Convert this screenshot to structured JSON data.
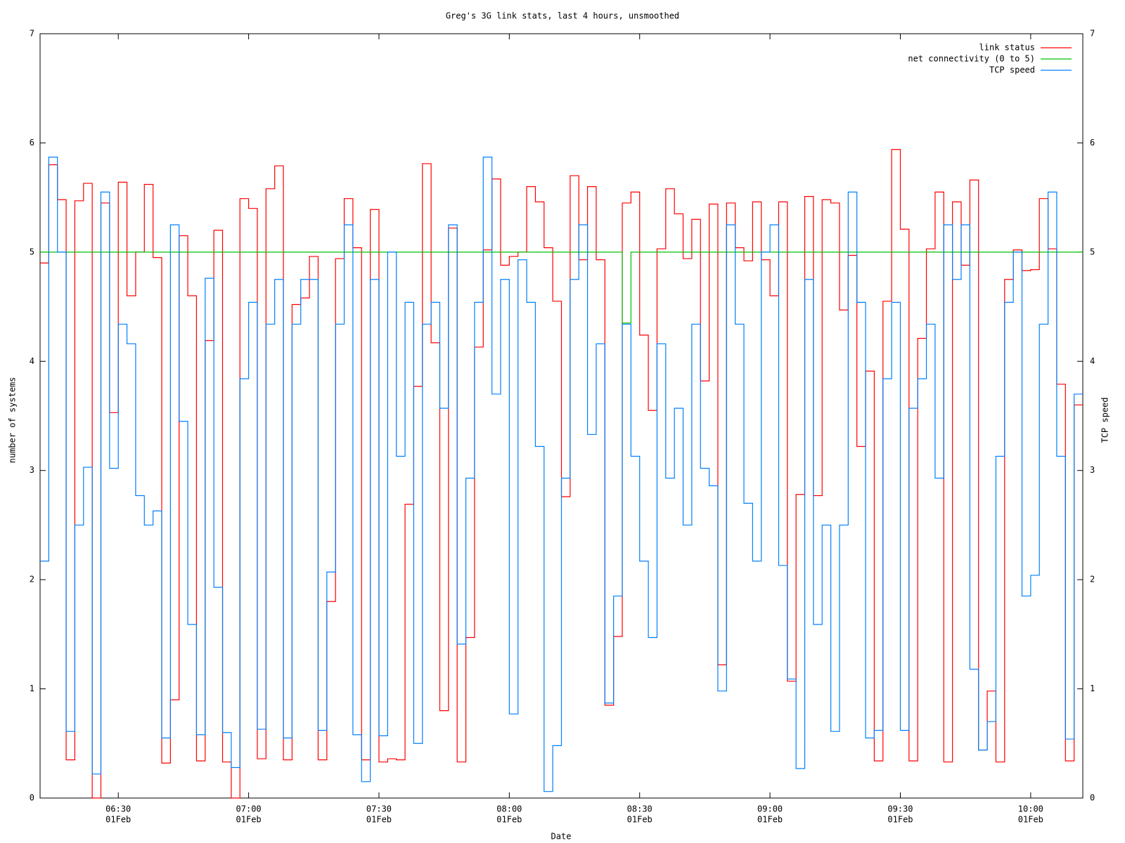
{
  "chart_data": {
    "type": "step",
    "title": "Greg's 3G link stats, last 4 hours, unsmoothed",
    "xlabel": "Date",
    "ylabel": "number of systems",
    "y2label": "TCP speed",
    "xtick_date": "01Feb",
    "xlim": [
      "06:12",
      "10:12"
    ],
    "xticks": [
      "06:30",
      "07:00",
      "07:30",
      "08:00",
      "08:30",
      "09:00",
      "09:30",
      "10:00"
    ],
    "ylim": [
      0,
      7
    ],
    "yticks": [
      0,
      1,
      2,
      3,
      4,
      5,
      6,
      7
    ],
    "y2lim": [
      0,
      7
    ],
    "y2ticks": [
      0,
      1,
      2,
      3,
      4,
      5,
      6,
      7
    ],
    "legend": "top-right",
    "x": [
      "06:12",
      "06:14",
      "06:16",
      "06:18",
      "06:20",
      "06:22",
      "06:24",
      "06:26",
      "06:28",
      "06:30",
      "06:32",
      "06:34",
      "06:36",
      "06:38",
      "06:40",
      "06:42",
      "06:44",
      "06:46",
      "06:48",
      "06:50",
      "06:52",
      "06:54",
      "06:56",
      "06:58",
      "07:00",
      "07:02",
      "07:04",
      "07:06",
      "07:08",
      "07:10",
      "07:12",
      "07:14",
      "07:16",
      "07:18",
      "07:20",
      "07:22",
      "07:24",
      "07:26",
      "07:28",
      "07:30",
      "07:32",
      "07:34",
      "07:36",
      "07:38",
      "07:40",
      "07:42",
      "07:44",
      "07:46",
      "07:48",
      "07:50",
      "07:52",
      "07:54",
      "07:56",
      "07:58",
      "08:00",
      "08:02",
      "08:04",
      "08:06",
      "08:08",
      "08:10",
      "08:12",
      "08:14",
      "08:16",
      "08:18",
      "08:20",
      "08:22",
      "08:24",
      "08:26",
      "08:28",
      "08:30",
      "08:32",
      "08:34",
      "08:36",
      "08:38",
      "08:40",
      "08:42",
      "08:44",
      "08:46",
      "08:48",
      "08:50",
      "08:52",
      "08:54",
      "08:56",
      "08:58",
      "09:00",
      "09:02",
      "09:04",
      "09:06",
      "09:08",
      "09:10",
      "09:12",
      "09:14",
      "09:16",
      "09:18",
      "09:20",
      "09:22",
      "09:24",
      "09:26",
      "09:28",
      "09:30",
      "09:32",
      "09:34",
      "09:36",
      "09:38",
      "09:40",
      "09:42",
      "09:44",
      "09:46",
      "09:48",
      "09:50",
      "09:52",
      "09:54",
      "09:56",
      "09:58",
      "10:00",
      "10:02",
      "10:04",
      "10:06",
      "10:08",
      "10:10"
    ],
    "series": [
      {
        "name": "link status",
        "color": "#ff0000",
        "values": [
          4.9,
          5.8,
          5.48,
          0.35,
          5.47,
          5.63,
          0.0,
          5.45,
          3.53,
          5.64,
          4.6,
          5.0,
          5.62,
          4.95,
          0.32,
          0.9,
          5.15,
          4.6,
          0.34,
          4.19,
          5.2,
          0.33,
          0.0,
          5.49,
          5.4,
          0.36,
          5.58,
          5.79,
          0.35,
          4.52,
          4.58,
          4.96,
          0.35,
          1.8,
          4.94,
          5.49,
          5.04,
          0.35,
          5.39,
          0.33,
          0.36,
          0.35,
          2.69,
          3.77,
          5.81,
          4.17,
          0.8,
          5.22,
          0.33,
          1.47,
          4.13,
          5.02,
          5.67,
          4.88,
          4.96,
          5.0,
          5.6,
          5.46,
          5.04,
          4.55,
          2.76,
          5.7,
          4.93,
          5.6,
          4.93,
          0.85,
          1.48,
          5.45,
          5.55,
          4.24,
          3.55,
          5.03,
          5.58,
          5.35,
          4.94,
          5.3,
          3.82,
          5.44,
          1.22,
          5.45,
          5.04,
          4.92,
          5.46,
          4.93,
          4.6,
          5.46,
          1.07,
          2.78,
          5.51,
          2.77,
          5.48,
          5.45,
          4.47,
          4.97,
          3.22,
          3.91,
          0.34,
          4.55,
          5.94,
          5.21,
          0.34,
          4.21,
          5.03,
          5.55,
          0.33,
          5.46,
          4.88,
          5.66,
          0.44,
          0.98,
          0.33,
          4.75,
          5.02,
          4.83,
          4.84,
          5.49,
          5.03,
          3.79,
          0.34,
          3.6
        ]
      },
      {
        "name": "net connectivity (0 to 5)",
        "color": "#00c000",
        "values": [
          5,
          5,
          5,
          5,
          5,
          5,
          5,
          5,
          5,
          5,
          5,
          5,
          5,
          5,
          5,
          5,
          5,
          5,
          5,
          5,
          5,
          5,
          5,
          5,
          5,
          5,
          5,
          5,
          5,
          5,
          5,
          5,
          5,
          5,
          5,
          5,
          5,
          5,
          5,
          5,
          5,
          5,
          5,
          5,
          5,
          5,
          5,
          5,
          5,
          5,
          5,
          5,
          5,
          5,
          5,
          5,
          5,
          5,
          5,
          5,
          5,
          5,
          5,
          5,
          5,
          5,
          5,
          4.35,
          5,
          5,
          5,
          5,
          5,
          5,
          5,
          5,
          5,
          5,
          5,
          5,
          5,
          5,
          5,
          5,
          5,
          5,
          5,
          5,
          5,
          5,
          5,
          5,
          5,
          5,
          5,
          5,
          5,
          5,
          5,
          5,
          5,
          5,
          5,
          5,
          5,
          5,
          5,
          5,
          5,
          5,
          5,
          5,
          5,
          5,
          5,
          5,
          5,
          5,
          5,
          5
        ]
      },
      {
        "name": "TCP speed",
        "color": "#0080ff",
        "axis": "y2",
        "values": [
          2.17,
          5.87,
          5.0,
          0.61,
          2.5,
          3.03,
          0.22,
          5.55,
          3.02,
          4.34,
          4.16,
          2.77,
          2.5,
          2.63,
          0.55,
          5.25,
          3.45,
          1.59,
          0.58,
          4.76,
          1.93,
          0.6,
          0.28,
          3.84,
          4.54,
          0.63,
          4.34,
          4.75,
          0.55,
          4.34,
          4.75,
          4.75,
          0.62,
          2.07,
          4.34,
          5.25,
          0.58,
          0.15,
          4.75,
          0.57,
          5.0,
          3.13,
          4.54,
          0.5,
          4.34,
          4.54,
          3.57,
          5.25,
          1.41,
          2.93,
          4.54,
          5.87,
          3.7,
          4.75,
          0.77,
          4.93,
          4.54,
          3.22,
          0.06,
          0.48,
          2.93,
          4.75,
          5.25,
          3.33,
          4.16,
          0.87,
          1.85,
          4.34,
          3.13,
          2.17,
          1.47,
          4.16,
          2.93,
          3.57,
          2.5,
          4.34,
          3.02,
          2.86,
          0.98,
          5.25,
          4.34,
          2.7,
          2.17,
          5.0,
          5.25,
          2.13,
          1.09,
          0.27,
          4.75,
          1.59,
          2.5,
          0.61,
          2.5,
          5.55,
          4.54,
          0.55,
          0.62,
          3.84,
          4.54,
          0.62,
          3.57,
          3.84,
          4.34,
          2.93,
          5.25,
          4.75,
          5.25,
          1.18,
          0.44,
          0.7,
          3.13,
          4.54,
          5.0,
          1.85,
          2.04,
          4.34,
          5.55,
          3.13,
          0.54,
          3.7
        ]
      }
    ]
  }
}
